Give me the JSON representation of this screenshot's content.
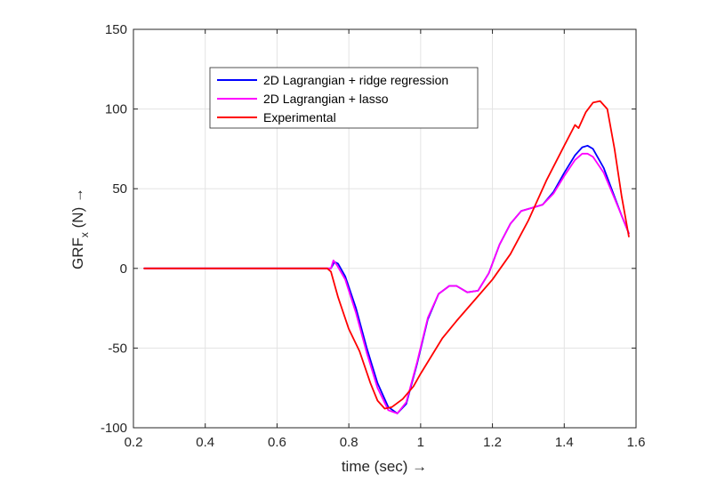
{
  "chart_data": {
    "type": "line",
    "xlabel": "time (sec) →",
    "ylabel_main": "GRF",
    "ylabel_sub": "x",
    "ylabel_rest": " (N) →",
    "xlim": [
      0.2,
      1.6
    ],
    "ylim": [
      -100,
      150
    ],
    "xticks": [
      0.2,
      0.4,
      0.6,
      0.8,
      1,
      1.2,
      1.4,
      1.6
    ],
    "xtick_labels": [
      "0.2",
      "0.4",
      "0.6",
      "0.8",
      "1",
      "1.2",
      "1.4",
      "1.6"
    ],
    "yticks": [
      -100,
      -50,
      0,
      50,
      100,
      150
    ],
    "ytick_labels": [
      "-100",
      "-50",
      "0",
      "50",
      "100",
      "150"
    ],
    "grid": true,
    "legend_position": "top-left",
    "series": [
      {
        "name": "2D Lagrangian + ridge regression",
        "color": "#0000ff",
        "x": [
          0.23,
          0.5,
          0.75,
          0.76,
          0.77,
          0.79,
          0.82,
          0.85,
          0.88,
          0.91,
          0.935,
          0.96,
          0.99,
          1.02,
          1.05,
          1.08,
          1.1,
          1.13,
          1.16,
          1.19,
          1.22,
          1.25,
          1.28,
          1.31,
          1.34,
          1.37,
          1.4,
          1.43,
          1.45,
          1.465,
          1.48,
          1.51,
          1.54,
          1.56,
          1.58
        ],
        "y": [
          0,
          0,
          0,
          4,
          3,
          -5,
          -25,
          -50,
          -72,
          -87,
          -91,
          -85,
          -60,
          -32,
          -16,
          -11,
          -11,
          -15,
          -14,
          -3,
          15,
          28,
          36,
          38,
          40,
          48,
          60,
          71,
          76,
          77,
          75,
          63,
          45,
          33,
          22
        ]
      },
      {
        "name": "2D Lagrangian + lasso",
        "color": "#ff00ff",
        "x": [
          0.23,
          0.5,
          0.75,
          0.757,
          0.767,
          0.79,
          0.82,
          0.85,
          0.88,
          0.91,
          0.935,
          0.96,
          0.99,
          1.02,
          1.05,
          1.08,
          1.1,
          1.13,
          1.16,
          1.19,
          1.22,
          1.25,
          1.28,
          1.31,
          1.34,
          1.37,
          1.4,
          1.43,
          1.45,
          1.465,
          1.48,
          1.51,
          1.54,
          1.56,
          1.58
        ],
        "y": [
          0,
          0,
          0,
          5,
          2,
          -7,
          -28,
          -53,
          -75,
          -89,
          -91,
          -84,
          -59,
          -31,
          -16,
          -11,
          -11,
          -15,
          -14,
          -3,
          15,
          28,
          36,
          38,
          40,
          47,
          58,
          68,
          72,
          72,
          70,
          60,
          44,
          33,
          22
        ]
      },
      {
        "name": "Experimental",
        "color": "#ff0000",
        "x": [
          0.23,
          0.5,
          0.74,
          0.75,
          0.77,
          0.8,
          0.83,
          0.86,
          0.88,
          0.9,
          0.92,
          0.95,
          0.98,
          1.0,
          1.03,
          1.06,
          1.1,
          1.15,
          1.2,
          1.25,
          1.3,
          1.35,
          1.4,
          1.43,
          1.44,
          1.46,
          1.48,
          1.5,
          1.52,
          1.54,
          1.56,
          1.58
        ],
        "y": [
          0,
          0,
          0,
          -2,
          -18,
          -38,
          -52,
          -72,
          -83,
          -88,
          -87,
          -82,
          -74,
          -66,
          -55,
          -44,
          -33,
          -20,
          -7,
          9,
          30,
          55,
          77,
          90,
          88,
          98,
          104,
          105,
          100,
          75,
          45,
          20
        ]
      }
    ]
  }
}
